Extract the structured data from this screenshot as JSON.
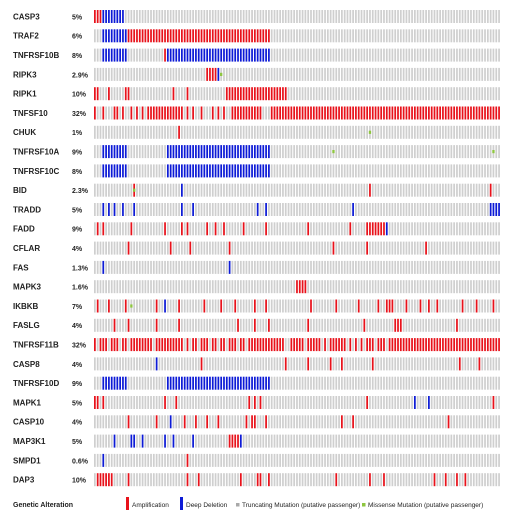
{
  "chart_data": {
    "type": "heatmap",
    "num_samples": 145,
    "genes": [
      {
        "name": "CASP3",
        "pct": "5%",
        "amp": [
          0,
          1,
          2
        ],
        "del": [
          3,
          4,
          5,
          6,
          7,
          8,
          9,
          10
        ],
        "mis": []
      },
      {
        "name": "TRAF2",
        "pct": "6%",
        "amp": [
          12,
          13,
          14,
          15,
          16,
          17,
          18,
          19,
          20,
          21,
          22,
          23,
          24,
          25,
          26,
          27,
          28,
          29,
          30,
          31,
          32,
          33,
          34,
          35,
          36,
          37,
          38,
          39,
          40,
          41,
          42,
          43,
          44,
          45,
          46,
          47,
          48,
          49,
          50,
          51,
          52,
          53,
          54,
          55,
          56,
          57,
          58,
          59,
          60,
          61,
          62
        ],
        "del": [
          3,
          4,
          5,
          6,
          7,
          8,
          9,
          10,
          11,
          62
        ],
        "mis": []
      },
      {
        "name": "TNFRSF10B",
        "pct": "8%",
        "amp": [
          25
        ],
        "del": [
          3,
          4,
          5,
          6,
          7,
          8,
          9,
          10,
          11,
          26,
          27,
          28,
          29,
          30,
          31,
          32,
          33,
          34,
          35,
          36,
          37,
          38,
          39,
          40,
          41,
          42,
          43,
          44,
          45,
          46,
          47,
          48,
          49,
          50,
          51,
          52,
          53,
          54,
          55,
          56,
          57,
          58,
          59,
          60,
          61,
          62
        ],
        "mis": []
      },
      {
        "name": "RIPK3",
        "pct": "2.9%",
        "amp": [
          40,
          41,
          42,
          43
        ],
        "del": [
          44
        ],
        "mis": [
          45
        ]
      },
      {
        "name": "RIPK1",
        "pct": "10%",
        "amp": [
          0,
          1,
          5,
          11,
          12,
          28,
          33,
          47,
          48,
          49,
          50,
          51,
          52,
          53,
          54,
          55,
          56,
          57,
          58,
          59,
          60,
          61,
          62,
          63,
          64,
          65,
          66,
          67,
          68
        ],
        "del": [],
        "mis": []
      },
      {
        "name": "TNFSF10",
        "pct": "32%",
        "amp": [
          0,
          3,
          7,
          8,
          10,
          13,
          15,
          17,
          19,
          20,
          21,
          22,
          23,
          24,
          25,
          26,
          27,
          28,
          29,
          30,
          31,
          33,
          35,
          38,
          42,
          44,
          46,
          49,
          50,
          51,
          52,
          53,
          54,
          55,
          56,
          57,
          58,
          59,
          63,
          64,
          65,
          66,
          67,
          68,
          69,
          70,
          71,
          72,
          73,
          74,
          75,
          76,
          77,
          78,
          79,
          80,
          81,
          82,
          83,
          84,
          85,
          86,
          87,
          88,
          89,
          90,
          91,
          92,
          93,
          94,
          95,
          96,
          97,
          98,
          99,
          100,
          101,
          102,
          103,
          104,
          105,
          106,
          107,
          108,
          109,
          110,
          111,
          112,
          113,
          114,
          115,
          116,
          117,
          118,
          119,
          120,
          121,
          122,
          123,
          124,
          125,
          126,
          127,
          128,
          129,
          130,
          131,
          132,
          133,
          134,
          135,
          136,
          137,
          138,
          139,
          140,
          141,
          142,
          143,
          144
        ],
        "del": [],
        "mis": []
      },
      {
        "name": "CHUK",
        "pct": "1%",
        "amp": [
          30
        ],
        "del": [],
        "mis": [
          98
        ]
      },
      {
        "name": "TNFRSF10A",
        "pct": "9%",
        "amp": [],
        "del": [
          3,
          4,
          5,
          6,
          7,
          8,
          9,
          10,
          11,
          26,
          27,
          28,
          29,
          30,
          31,
          32,
          33,
          34,
          35,
          36,
          37,
          38,
          39,
          40,
          41,
          42,
          43,
          44,
          45,
          46,
          47,
          48,
          49,
          50,
          51,
          52,
          53,
          54,
          55,
          56,
          57,
          58,
          59,
          60,
          61,
          62
        ],
        "mis": [
          85,
          142
        ]
      },
      {
        "name": "TNFRSF10C",
        "pct": "8%",
        "amp": [],
        "del": [
          3,
          4,
          5,
          6,
          7,
          8,
          9,
          10,
          11,
          26,
          27,
          28,
          29,
          30,
          31,
          32,
          33,
          34,
          35,
          36,
          37,
          38,
          39,
          40,
          41,
          42,
          43,
          44,
          45,
          46,
          47,
          48,
          49,
          50,
          51,
          52,
          53,
          54,
          55,
          56,
          57,
          58,
          59,
          60,
          61,
          62
        ],
        "mis": []
      },
      {
        "name": "BID",
        "pct": "2.3%",
        "amp": [
          14,
          98,
          141
        ],
        "del": [
          31
        ],
        "mis": [
          14
        ]
      },
      {
        "name": "TRADD",
        "pct": "5%",
        "amp": [],
        "del": [
          3,
          5,
          7,
          10,
          14,
          31,
          35,
          58,
          61,
          92,
          141,
          142,
          143,
          144
        ],
        "mis": []
      },
      {
        "name": "FADD",
        "pct": "9%",
        "amp": [
          1,
          3,
          13,
          25,
          31,
          33,
          40,
          43,
          46,
          53,
          61,
          76,
          91,
          97,
          98,
          99,
          100,
          101,
          102,
          103
        ],
        "del": [
          104
        ],
        "mis": []
      },
      {
        "name": "CFLAR",
        "pct": "4%",
        "amp": [
          12,
          27,
          34,
          48,
          85,
          97,
          118
        ],
        "del": [],
        "mis": []
      },
      {
        "name": "FAS",
        "pct": "1.3%",
        "amp": [],
        "del": [
          3,
          48
        ],
        "mis": []
      },
      {
        "name": "MAPK3",
        "pct": "1.6%",
        "amp": [
          72,
          73,
          74,
          75
        ],
        "del": [],
        "mis": []
      },
      {
        "name": "IKBKB",
        "pct": "7%",
        "amp": [
          1,
          5,
          11,
          22,
          30,
          39,
          45,
          50,
          57,
          61,
          77,
          86,
          94,
          101,
          104,
          105,
          106,
          111,
          116,
          119,
          122,
          131,
          136,
          142
        ],
        "del": [
          25
        ],
        "mis": [
          13
        ]
      },
      {
        "name": "FASLG",
        "pct": "4%",
        "amp": [
          7,
          12,
          22,
          30,
          51,
          57,
          62,
          76,
          96,
          107,
          108,
          109,
          129
        ],
        "del": [],
        "mis": []
      },
      {
        "name": "TNFRSF11B",
        "pct": "32%",
        "amp": [
          0,
          2,
          3,
          4,
          6,
          7,
          8,
          10,
          11,
          13,
          14,
          15,
          16,
          17,
          18,
          19,
          20,
          22,
          23,
          24,
          25,
          26,
          27,
          28,
          29,
          30,
          31,
          33,
          35,
          36,
          38,
          39,
          40,
          42,
          43,
          45,
          46,
          48,
          49,
          50,
          52,
          53,
          55,
          56,
          57,
          58,
          59,
          60,
          61,
          62,
          63,
          64,
          65,
          66,
          67,
          70,
          71,
          72,
          73,
          74,
          76,
          77,
          78,
          79,
          80,
          82,
          84,
          85,
          86,
          87,
          88,
          89,
          91,
          93,
          95,
          97,
          98,
          99,
          101,
          102,
          103,
          105,
          106,
          107,
          108,
          109,
          110,
          111,
          112,
          113,
          114,
          115,
          116,
          117,
          118,
          119,
          120,
          121,
          122,
          123,
          124,
          125,
          126,
          127,
          128,
          129,
          130,
          131,
          132,
          133,
          134,
          135,
          136,
          137,
          138,
          139,
          140,
          141,
          142,
          143,
          144
        ],
        "del": [],
        "mis": []
      },
      {
        "name": "CASP8",
        "pct": "4%",
        "amp": [
          38,
          68,
          76,
          84,
          88,
          99,
          130,
          137
        ],
        "del": [
          22
        ],
        "mis": []
      },
      {
        "name": "TNFRSF10D",
        "pct": "9%",
        "amp": [],
        "del": [
          3,
          4,
          5,
          6,
          7,
          8,
          9,
          10,
          11,
          26,
          27,
          28,
          29,
          30,
          31,
          32,
          33,
          34,
          35,
          36,
          37,
          38,
          39,
          40,
          41,
          42,
          43,
          44,
          45,
          46,
          47,
          48,
          49,
          50,
          51,
          52,
          53,
          54,
          55,
          56,
          57,
          58,
          59,
          60,
          61,
          62
        ],
        "mis": []
      },
      {
        "name": "MAPK1",
        "pct": "5%",
        "amp": [
          0,
          1,
          3,
          25,
          29,
          55,
          57,
          59,
          97,
          142
        ],
        "del": [
          114,
          119
        ],
        "mis": []
      },
      {
        "name": "CASP10",
        "pct": "4%",
        "amp": [
          12,
          22,
          32,
          36,
          40,
          44,
          54,
          56,
          57,
          61,
          88,
          92,
          126
        ],
        "del": [
          27
        ],
        "mis": []
      },
      {
        "name": "MAP3K1",
        "pct": "5%",
        "amp": [
          48,
          49,
          50,
          51
        ],
        "del": [
          7,
          13,
          14,
          17,
          25,
          28,
          35,
          52
        ],
        "mis": []
      },
      {
        "name": "SMPD1",
        "pct": "0.6%",
        "amp": [
          33
        ],
        "del": [
          3
        ],
        "mis": []
      },
      {
        "name": "DAP3",
        "pct": "10%",
        "amp": [
          1,
          2,
          3,
          4,
          5,
          6,
          12,
          33,
          37,
          52,
          58,
          59,
          62,
          86,
          98,
          103,
          121,
          125,
          129,
          132
        ],
        "del": [],
        "mis": []
      }
    ],
    "legend": {
      "title": "Genetic Alteration",
      "items": [
        {
          "label": "Amplification",
          "color": "#e8121b",
          "shape": "tall"
        },
        {
          "label": "Deep Deletion",
          "color": "#0d1bd6",
          "shape": "tall"
        },
        {
          "label": "Truncating Mutation (putative passenger)",
          "color": "#a9a9a9",
          "shape": "small"
        },
        {
          "label": "Missense Mutation (putative passenger)",
          "color": "#8ec63f",
          "shape": "small"
        }
      ]
    },
    "colors": {
      "background_cell": "#cfcfcf",
      "amplification": "#e8121b",
      "deep_deletion": "#0d1bd6",
      "missense": "#8ec63f"
    }
  }
}
